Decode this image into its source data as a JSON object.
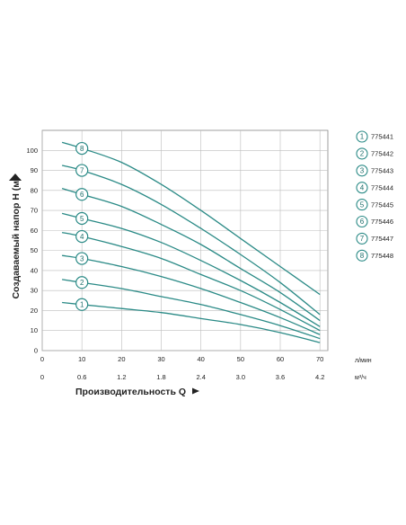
{
  "chart_data": {
    "type": "line",
    "xlabel": "Производительность Q",
    "ylabel": "Создаваемый напор H (м)",
    "xlim": [
      0,
      72
    ],
    "ylim": [
      0,
      110
    ],
    "x_ticks": [
      "0",
      "10",
      "20",
      "30",
      "40",
      "50",
      "60",
      "70"
    ],
    "x_unit": "л/мин",
    "x2_ticks": [
      "0",
      "0.6",
      "1.2",
      "1.8",
      "2.4",
      "3.0",
      "3.6",
      "4.2"
    ],
    "x2_unit": "м³/ч",
    "y_ticks": [
      "0",
      "10",
      "20",
      "30",
      "40",
      "50",
      "60",
      "70",
      "80",
      "90",
      "100"
    ],
    "grid": true,
    "legend_position": "right",
    "line_color": "#2a8a86",
    "badge_color": "#2a8a86",
    "series": [
      {
        "name": "775441",
        "badge": "1",
        "x": [
          5,
          10,
          20,
          30,
          40,
          50,
          60,
          70
        ],
        "y": [
          24,
          23,
          21,
          19,
          16,
          13,
          9,
          4
        ]
      },
      {
        "name": "775442",
        "badge": "2",
        "x": [
          5,
          10,
          20,
          30,
          40,
          50,
          60,
          70
        ],
        "y": [
          35.5,
          34,
          31,
          27,
          23,
          18,
          12.5,
          6
        ]
      },
      {
        "name": "775443",
        "badge": "3",
        "x": [
          5,
          10,
          20,
          30,
          40,
          50,
          60,
          70
        ],
        "y": [
          47.5,
          46,
          42,
          37,
          31,
          24,
          16.5,
          8
        ]
      },
      {
        "name": "775444",
        "badge": "4",
        "x": [
          5,
          10,
          20,
          30,
          40,
          50,
          60,
          70
        ],
        "y": [
          59,
          57,
          52,
          46,
          38,
          30,
          20.5,
          10
        ]
      },
      {
        "name": "775445",
        "badge": "5",
        "x": [
          5,
          10,
          20,
          30,
          40,
          50,
          60,
          70
        ],
        "y": [
          68.5,
          66,
          61,
          54,
          45,
          35,
          24,
          12
        ]
      },
      {
        "name": "775446",
        "badge": "6",
        "x": [
          5,
          10,
          20,
          30,
          40,
          50,
          60,
          70
        ],
        "y": [
          81,
          78,
          72,
          63,
          53,
          41,
          29,
          15
        ]
      },
      {
        "name": "775447",
        "badge": "7",
        "x": [
          5,
          10,
          20,
          30,
          40,
          50,
          60,
          70
        ],
        "y": [
          92.5,
          90,
          83,
          73,
          61,
          48,
          34,
          18
        ]
      },
      {
        "name": "775448",
        "badge": "8",
        "x": [
          5,
          10,
          20,
          30,
          40,
          50,
          60,
          70
        ],
        "y": [
          104,
          101,
          94,
          83,
          70,
          56,
          42,
          28
        ]
      }
    ]
  }
}
